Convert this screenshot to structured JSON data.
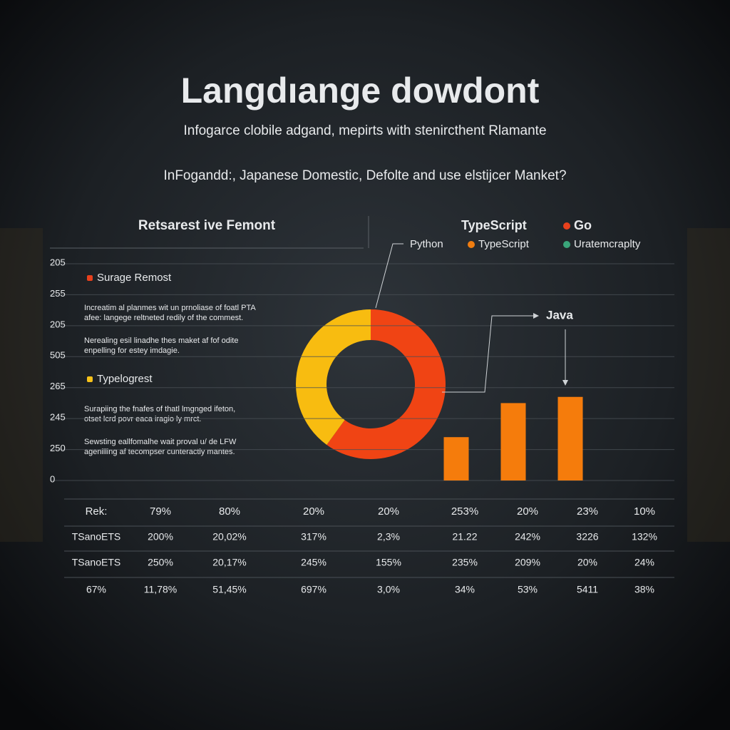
{
  "header": {
    "title": "Langdıange dowdont",
    "subtitle": "Infogarce clobile adgand, mepirts with stenircthent Rlamante",
    "question": "InFogandd:, Japanese Domestic, Defolte and use elstijcer Manket?"
  },
  "panel": {
    "title": "Retsarest ive Femont",
    "sections": [
      {
        "heading": "Surage Remost",
        "color": "#e8401c",
        "lines": [
          "Increatim al planmes wit un prnoliase of foatl PTA",
          "afee: langege reltneted redily of the commest.",
          "Nerealing esil linadhe thes maket af fof odite",
          "enpelling for estey imdagie."
        ]
      },
      {
        "heading": "Typelogrest",
        "color": "#f7c21a",
        "lines": [
          "Surapiing the fnafes of thatl lmgnged ifeton,",
          "otset lcrd povr eaca iragio ly mrct.",
          "Sewsting eallfomalhe wait proval u/ de LFW",
          "agenilling af tecompser cunteractly mantes."
        ]
      }
    ]
  },
  "legend": {
    "items": [
      {
        "label": "TypeScript"
      },
      {
        "label": "Go",
        "color": "#e8401c"
      },
      {
        "label": "Python"
      },
      {
        "label": "TypeScript",
        "color": "#f07d10"
      },
      {
        "label": "Uratemcraplty",
        "color": "#3aa57a"
      }
    ]
  },
  "chart_data": [
    {
      "type": "pie",
      "donut": true,
      "categories": [
        null,
        null
      ],
      "values": [
        60,
        40
      ],
      "colors": [
        "#f04414",
        "#f8bc10"
      ]
    },
    {
      "type": "bar",
      "categories": [
        null,
        null,
        null
      ],
      "values": [
        1.4,
        2.5,
        2.7
      ],
      "color": "#f57c0c",
      "annotation": "Java",
      "ylim": [
        0,
        7
      ],
      "yticks": [
        0,
        {
          "value": 1,
          "label": "250"
        },
        {
          "value": 2,
          "label": "245"
        },
        {
          "value": 3,
          "label": "265"
        },
        {
          "value": 4,
          "label": "505"
        },
        {
          "value": 5,
          "label": "205"
        },
        {
          "value": 6,
          "label": "255"
        },
        {
          "value": 7,
          "label": "205"
        }
      ],
      "grid": true
    }
  ],
  "table": {
    "rows": [
      [
        "Rek:",
        "79%",
        "80%",
        "20%",
        "20%",
        "253%",
        "20%",
        "23%",
        "10%"
      ],
      [
        "TSanoETS",
        "200%",
        "20,02%",
        "317%",
        "2,3%",
        "21.22",
        "242%",
        "3226",
        "132%"
      ],
      [
        "TSanoETS",
        "250%",
        "20,17%",
        "245%",
        "155%",
        "235%",
        "209%",
        "20%",
        "24%"
      ],
      [
        "67%",
        "11,78%",
        "51,45%",
        "697%",
        "3,0%",
        "34%",
        "53%",
        "5411",
        "38%"
      ]
    ]
  }
}
